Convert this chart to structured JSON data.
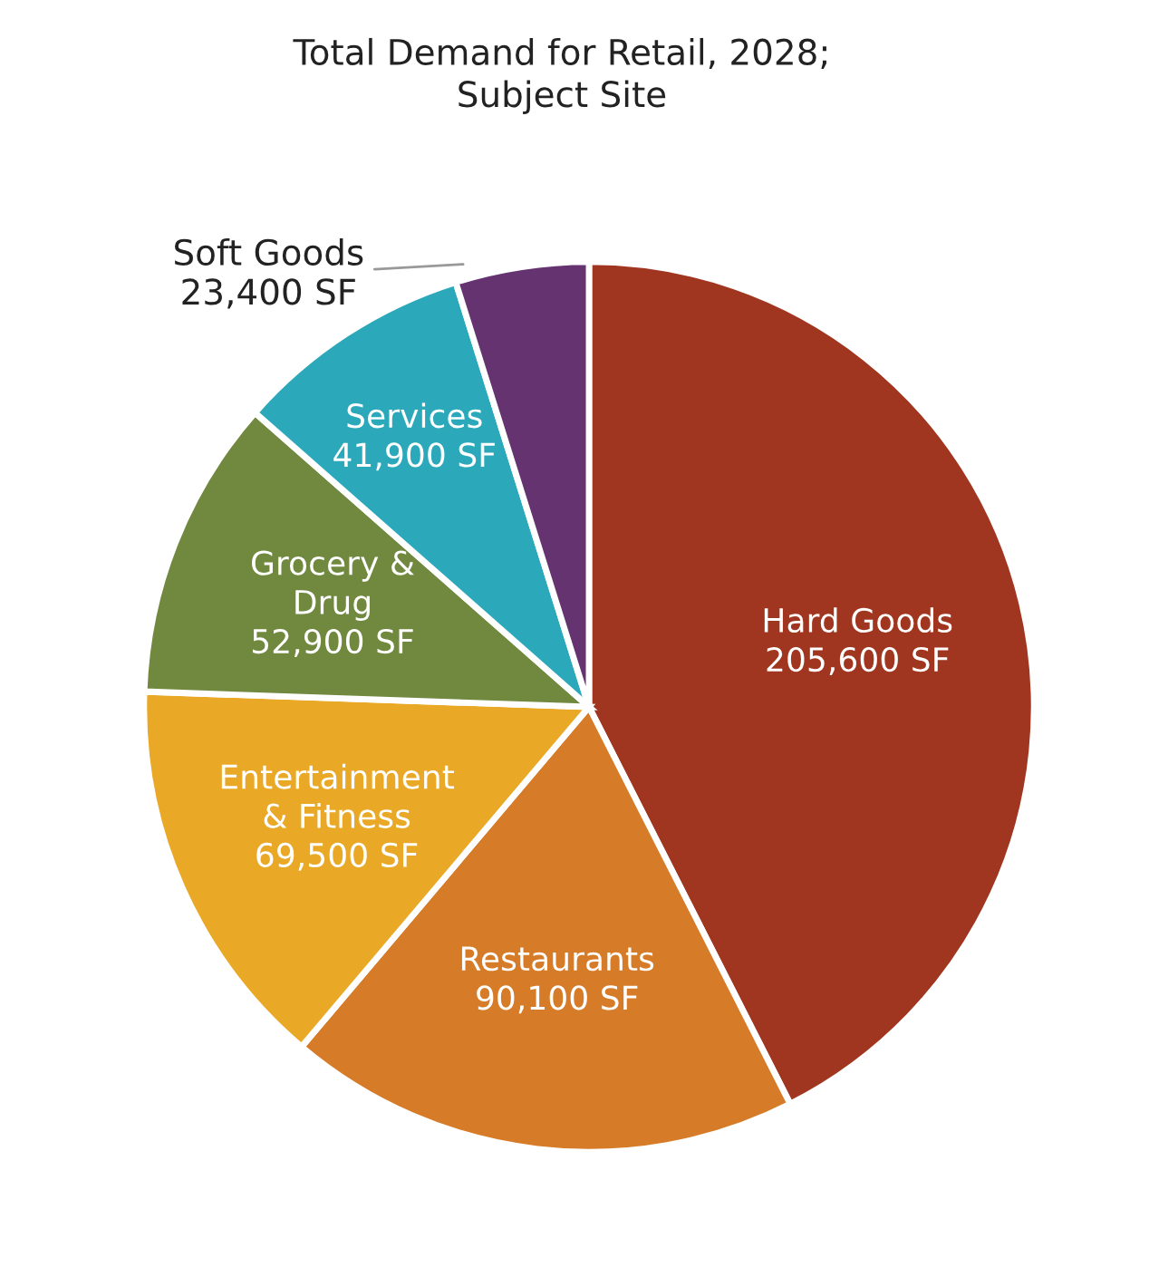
{
  "chart_data": {
    "type": "pie",
    "title": "Total Demand for Retail, 2028;\nSubject Site",
    "categories": [
      "Hard Goods",
      "Restaurants",
      "Entertainment\n& Fitness",
      "Grocery &\nDrug",
      "Services",
      "Soft Goods"
    ],
    "values": [
      205600,
      90100,
      69500,
      52900,
      41900,
      23400
    ],
    "value_labels": [
      "205,600 SF",
      "90,100 SF",
      "69,500 SF",
      "52,900 SF",
      "41,900 SF",
      "23,400 SF"
    ],
    "colors": [
      "#a0361f",
      "#d67b27",
      "#e9a826",
      "#71893f",
      "#2ba9bb",
      "#65336f"
    ]
  }
}
